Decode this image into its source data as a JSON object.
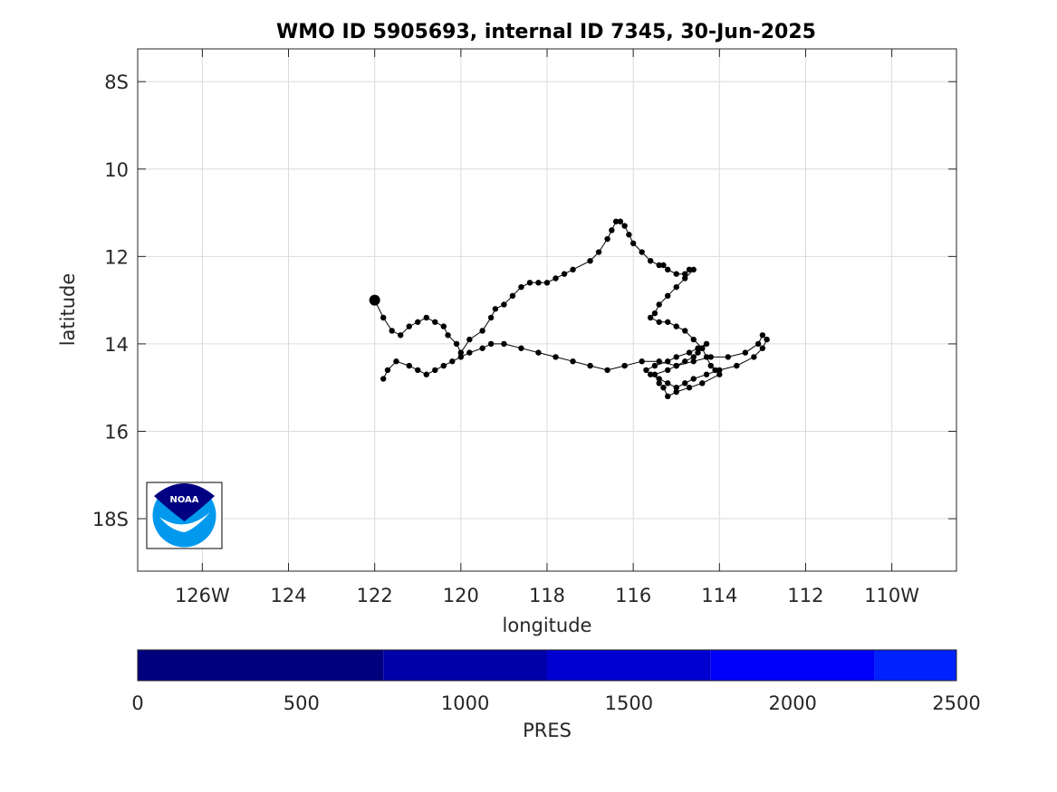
{
  "chart_data": {
    "type": "line",
    "title": "WMO ID 5905693, internal ID 7345, 30-Jun-2025",
    "xlabel": "longitude",
    "ylabel": "latitude",
    "xlim": [
      -127.5,
      -108.5
    ],
    "ylim": [
      -19.2,
      -7.25
    ],
    "grid": true,
    "x_ticks": [
      {
        "value": -126,
        "label": "126W"
      },
      {
        "value": -124,
        "label": "124"
      },
      {
        "value": -122,
        "label": "122"
      },
      {
        "value": -120,
        "label": "120"
      },
      {
        "value": -118,
        "label": "118"
      },
      {
        "value": -116,
        "label": "116"
      },
      {
        "value": -114,
        "label": "114"
      },
      {
        "value": -112,
        "label": "112"
      },
      {
        "value": -110,
        "label": "110W"
      }
    ],
    "y_ticks": [
      {
        "value": -8,
        "label": "8S"
      },
      {
        "value": -10,
        "label": "10"
      },
      {
        "value": -12,
        "label": "12"
      },
      {
        "value": -14,
        "label": "14"
      },
      {
        "value": -16,
        "label": "16"
      },
      {
        "value": -18,
        "label": "18S"
      }
    ],
    "series": [
      {
        "marker_color": "#000000",
        "line_color": "#000000",
        "x": [
          -122,
          -121.8,
          -121.6,
          -121.4,
          -121.2,
          -121.0,
          -120.8,
          -120.6,
          -120.4,
          -120.3,
          -120.1,
          -120.0,
          -119.8,
          -119.5,
          -119.3,
          -119.2,
          -119.0,
          -118.8,
          -118.6,
          -118.4,
          -118.2,
          -118.0,
          -117.8,
          -117.6,
          -117.4,
          -117.0,
          -116.8,
          -116.6,
          -116.5,
          -116.4,
          -116.3,
          -116.2,
          -116.1,
          -116.0,
          -115.8,
          -115.6,
          -115.4,
          -115.3,
          -115.2,
          -115.0,
          -114.8,
          -114.7,
          -114.6,
          -114.8,
          -115.0,
          -115.2,
          -115.4,
          -115.5,
          -115.6,
          -115.4,
          -115.2,
          -115.0,
          -114.8,
          -114.6,
          -114.4,
          -114.3,
          -114.2,
          -114.1,
          -114.0,
          -114.4,
          -114.7,
          -115.0,
          -115.2,
          -115.3,
          -115.4,
          -115.5,
          -115.2,
          -115.0,
          -114.8,
          -114.6,
          -114.5,
          -114.4,
          -114.3,
          -114.5,
          -114.7,
          -115.0,
          -115.2,
          -115.5,
          -115.7,
          -115.6,
          -115.4,
          -115.2,
          -115.0,
          -114.8,
          -114.6,
          -114.3,
          -114.0,
          -113.6,
          -113.2,
          -113.0,
          -112.9,
          -113.0,
          -113.1,
          -113.4,
          -113.8,
          -114.2,
          -114.6,
          -115.0,
          -115.4,
          -115.8,
          -116.2,
          -116.6,
          -117.0,
          -117.4,
          -117.8,
          -118.2,
          -118.6,
          -119.0,
          -119.3,
          -119.5,
          -119.8,
          -120.0,
          -120.2,
          -120.4,
          -120.6,
          -120.8,
          -121.0,
          -121.2,
          -121.5,
          -121.7,
          -121.8
        ],
        "y": [
          -13.0,
          -13.4,
          -13.7,
          -13.8,
          -13.6,
          -13.5,
          -13.4,
          -13.5,
          -13.6,
          -13.8,
          -14.0,
          -14.2,
          -13.9,
          -13.7,
          -13.4,
          -13.2,
          -13.1,
          -12.9,
          -12.7,
          -12.6,
          -12.6,
          -12.6,
          -12.5,
          -12.4,
          -12.3,
          -12.1,
          -11.9,
          -11.6,
          -11.4,
          -11.2,
          -11.2,
          -11.3,
          -11.5,
          -11.7,
          -11.9,
          -12.1,
          -12.2,
          -12.2,
          -12.3,
          -12.4,
          -12.4,
          -12.3,
          -12.3,
          -12.5,
          -12.7,
          -12.9,
          -13.1,
          -13.3,
          -13.4,
          -13.5,
          -13.5,
          -13.6,
          -13.7,
          -13.9,
          -14.1,
          -14.3,
          -14.5,
          -14.6,
          -14.7,
          -14.9,
          -15.0,
          -15.1,
          -15.2,
          -15.0,
          -14.9,
          -14.7,
          -14.6,
          -14.5,
          -14.4,
          -14.3,
          -14.2,
          -14.1,
          -14.0,
          -14.1,
          -14.2,
          -14.3,
          -14.4,
          -14.5,
          -14.6,
          -14.7,
          -14.8,
          -14.9,
          -15.0,
          -14.9,
          -14.8,
          -14.7,
          -14.6,
          -14.5,
          -14.3,
          -14.1,
          -13.9,
          -13.8,
          -14.0,
          -14.2,
          -14.3,
          -14.3,
          -14.4,
          -14.5,
          -14.4,
          -14.4,
          -14.5,
          -14.6,
          -14.5,
          -14.4,
          -14.3,
          -14.2,
          -14.1,
          -14.0,
          -14.0,
          -14.1,
          -14.2,
          -14.3,
          -14.4,
          -14.5,
          -14.6,
          -14.7,
          -14.6,
          -14.5,
          -14.4,
          -14.6,
          -14.8
        ]
      }
    ],
    "start_marker": {
      "x": -122,
      "y": -13.0
    },
    "colorbar": {
      "label": "PRES",
      "min": 0,
      "max": 2500,
      "ticks": [
        {
          "value": 0,
          "label": "0"
        },
        {
          "value": 500,
          "label": "500"
        },
        {
          "value": 1000,
          "label": "1000"
        },
        {
          "value": 1500,
          "label": "1500"
        },
        {
          "value": 2000,
          "label": "2000"
        },
        {
          "value": 2500,
          "label": "2500"
        }
      ],
      "segments": [
        {
          "from": 0,
          "to": 750,
          "color": "#00007f"
        },
        {
          "from": 750,
          "to": 1250,
          "color": "#0000a8"
        },
        {
          "from": 1250,
          "to": 1750,
          "color": "#0000d1"
        },
        {
          "from": 1750,
          "to": 2250,
          "color": "#0000fa"
        },
        {
          "from": 2250,
          "to": 2500,
          "color": "#0022ff"
        }
      ]
    },
    "logo": {
      "text": "NOAA",
      "colors": {
        "dark": "#000080",
        "light": "#0099ee"
      }
    }
  }
}
